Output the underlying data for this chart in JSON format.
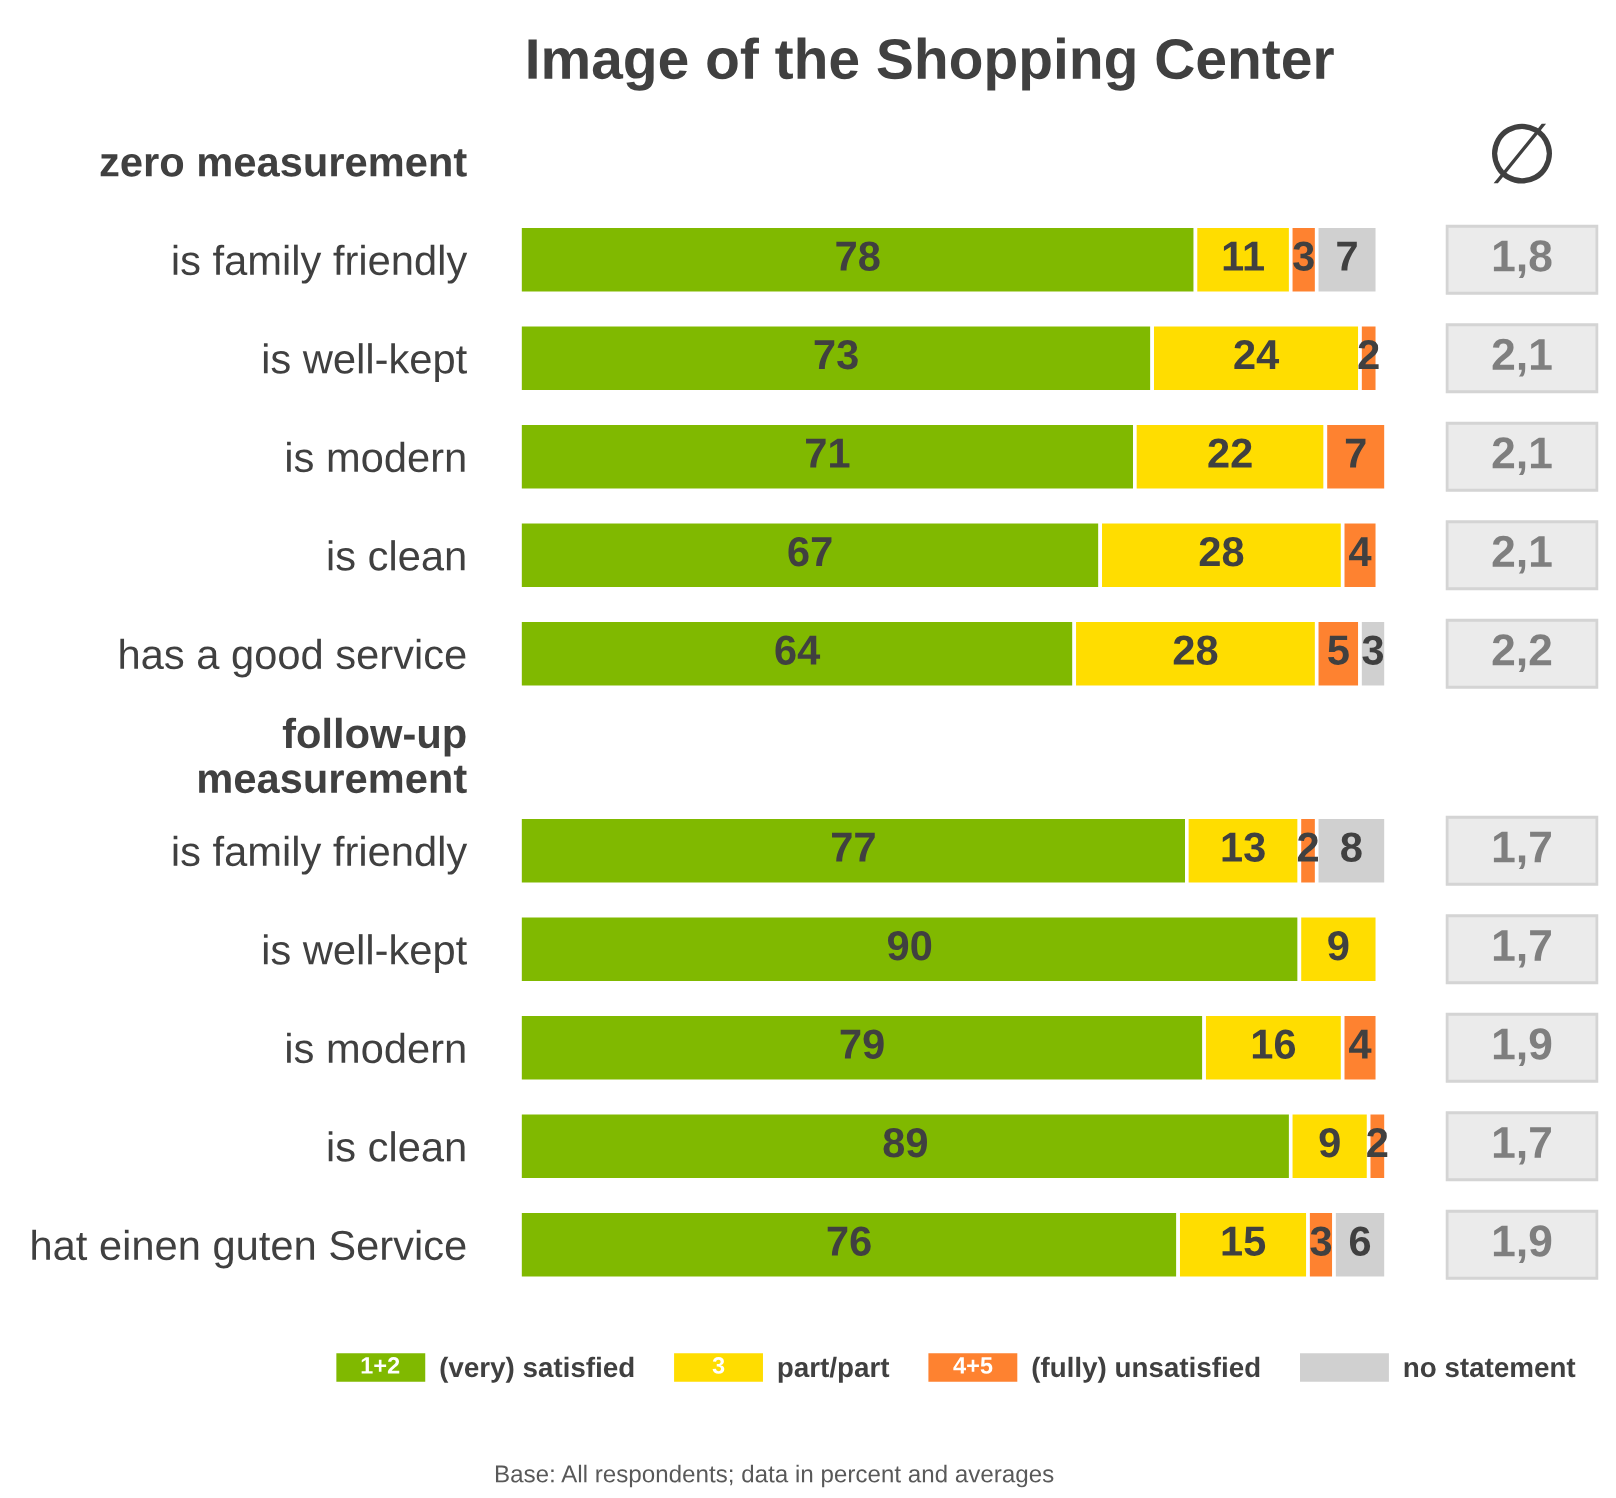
{
  "chart_data": [
    {
      "type": "bar",
      "orientation": "horizontal",
      "stacked": true,
      "title": "Image of the Shopping Center",
      "categories": [
        "zero measurement",
        "is family friendly",
        "is well-kept",
        "is modern",
        "is clean",
        "has a good service",
        "follow-up\nmeasurement",
        "is family friendly",
        "is well-kept",
        "is modern",
        "is clean",
        "hat einen guten Service"
      ],
      "series": [
        {
          "name": "(very) satisfied",
          "color": "#80b900",
          "values": [
            null,
            78,
            73,
            71,
            67,
            64,
            null,
            77,
            90,
            79,
            89,
            76
          ]
        },
        {
          "name": "part/part",
          "color": "#ffdd00",
          "values": [
            null,
            11,
            24,
            22,
            28,
            28,
            null,
            13,
            9,
            16,
            9,
            15
          ]
        },
        {
          "name": "(fully) unsatisfied",
          "color": "#fe8230",
          "values": [
            null,
            3,
            2,
            7,
            4,
            5,
            null,
            2,
            null,
            4,
            2,
            3
          ]
        },
        {
          "name": "no statement",
          "color": "#d0d0d0",
          "values": [
            null,
            7,
            null,
            null,
            null,
            3,
            null,
            8,
            null,
            null,
            null,
            6
          ]
        }
      ],
      "xlim": [
        0,
        100
      ],
      "data_labels": true,
      "legend": "bottom",
      "annotations": [
        "1+2",
        "3",
        "4+5",
        "Base: All respondents; data in percent and averages"
      ]
    },
    {
      "type": "other",
      "title": "∅",
      "categories": [
        null,
        null,
        null,
        null,
        null,
        null,
        null,
        null,
        null,
        null,
        null,
        null
      ],
      "value_labels": [
        null,
        "1,8",
        "2,1",
        "2,1",
        "2,1",
        "2,2",
        null,
        "1,7",
        "1,7",
        "1,9",
        "1,7",
        "1,9"
      ]
    }
  ]
}
